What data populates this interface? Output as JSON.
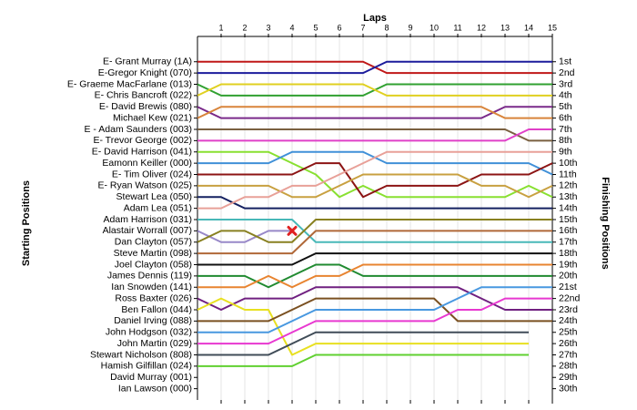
{
  "chart_data": {
    "type": "line",
    "xlabel": "Laps",
    "ylabel": "Starting Positions",
    "y2label": "Finishing Positions",
    "x": [
      0,
      1,
      2,
      3,
      4,
      5,
      6,
      7,
      8,
      9,
      10,
      11,
      12,
      13,
      14,
      15
    ],
    "xlim": [
      0,
      15
    ],
    "xticks": [
      1,
      2,
      3,
      4,
      5,
      6,
      7,
      8,
      9,
      10,
      11,
      12,
      13,
      14,
      15
    ],
    "ylim": [
      31,
      -1
    ],
    "y2lim": [
      31,
      -1
    ],
    "y2ticks": [
      {
        "value": 1,
        "label": "1st"
      },
      {
        "value": 2,
        "label": "2nd"
      },
      {
        "value": 3,
        "label": "3rd"
      },
      {
        "value": 4,
        "label": "4th"
      },
      {
        "value": 5,
        "label": "5th"
      },
      {
        "value": 6,
        "label": "6th"
      },
      {
        "value": 7,
        "label": "7th"
      },
      {
        "value": 8,
        "label": "8th"
      },
      {
        "value": 9,
        "label": "9th"
      },
      {
        "value": 10,
        "label": "10th"
      },
      {
        "value": 11,
        "label": "11th"
      },
      {
        "value": 12,
        "label": "12th"
      },
      {
        "value": 13,
        "label": "13th"
      },
      {
        "value": 14,
        "label": "14th"
      },
      {
        "value": 15,
        "label": "15th"
      },
      {
        "value": 16,
        "label": "16th"
      },
      {
        "value": 17,
        "label": "17th"
      },
      {
        "value": 18,
        "label": "18th"
      },
      {
        "value": 19,
        "label": "19th"
      },
      {
        "value": 20,
        "label": "20th"
      },
      {
        "value": 21,
        "label": "21st"
      },
      {
        "value": 22,
        "label": "22nd"
      },
      {
        "value": 23,
        "label": "23rd"
      },
      {
        "value": 24,
        "label": "24th"
      },
      {
        "value": 25,
        "label": "25th"
      },
      {
        "value": 26,
        "label": "26th"
      },
      {
        "value": 27,
        "label": "27th"
      },
      {
        "value": 28,
        "label": "28th"
      },
      {
        "value": 29,
        "label": "29th"
      },
      {
        "value": 30,
        "label": "30th"
      }
    ],
    "grid": true,
    "series": [
      {
        "name": "E- Grant Murray (1A)",
        "color": "#c01818",
        "values": [
          1,
          1,
          1,
          1,
          1,
          1,
          1,
          1,
          2,
          2,
          2,
          2,
          2,
          2,
          2,
          2
        ]
      },
      {
        "name": "E-Gregor Knight (070)",
        "color": "#1c1c9c",
        "values": [
          2,
          2,
          2,
          2,
          2,
          2,
          2,
          2,
          1,
          1,
          1,
          1,
          1,
          1,
          1,
          1
        ]
      },
      {
        "name": "E- Graeme MacFarlane (013)",
        "color": "#30a030",
        "values": [
          3,
          4,
          4,
          4,
          4,
          4,
          4,
          4,
          3,
          3,
          3,
          3,
          3,
          3,
          3,
          3
        ]
      },
      {
        "name": "E- Chris Bancroft (022)",
        "color": "#e0d020",
        "values": [
          4,
          3,
          3,
          3,
          3,
          3,
          3,
          3,
          4,
          4,
          4,
          4,
          4,
          4,
          4,
          4
        ]
      },
      {
        "name": "E- David Brewis (080)",
        "color": "#7a2a8a",
        "values": [
          5,
          6,
          6,
          6,
          6,
          6,
          6,
          6,
          6,
          6,
          6,
          6,
          6,
          5,
          5,
          5
        ]
      },
      {
        "name": "Michael Kew (021)",
        "color": "#d8843a",
        "values": [
          6,
          5,
          5,
          5,
          5,
          5,
          5,
          5,
          5,
          5,
          5,
          5,
          5,
          6,
          6,
          6
        ]
      },
      {
        "name": "E - Adam Saunders (003)",
        "color": "#7a6040",
        "values": [
          7,
          7,
          7,
          7,
          7,
          7,
          7,
          7,
          7,
          7,
          7,
          7,
          7,
          7,
          8,
          8
        ]
      },
      {
        "name": "E- Trevor George (002)",
        "color": "#e040c8",
        "values": [
          8,
          8,
          8,
          8,
          8,
          8,
          8,
          8,
          8,
          8,
          8,
          8,
          8,
          8,
          7,
          7
        ]
      },
      {
        "name": "E- David Harrison (041)",
        "color": "#88e030",
        "values": [
          9,
          9,
          9,
          9,
          10,
          11,
          13,
          12,
          13,
          13,
          13,
          13,
          13,
          13,
          12,
          13
        ]
      },
      {
        "name": "Eamonn Keiller (000)",
        "color": "#4090d8",
        "values": [
          10,
          10,
          10,
          10,
          9,
          9,
          9,
          9,
          10,
          10,
          10,
          10,
          10,
          10,
          10,
          11
        ]
      },
      {
        "name": "E- Tim Oliver (024)",
        "color": "#8c1414",
        "values": [
          11,
          11,
          11,
          11,
          11,
          10,
          10,
          13,
          12,
          12,
          12,
          12,
          11,
          11,
          11,
          10
        ]
      },
      {
        "name": "E- Ryan Watson (025)",
        "color": "#c8a040",
        "values": [
          12,
          12,
          12,
          12,
          13,
          13,
          12,
          11,
          11,
          11,
          11,
          11,
          12,
          12,
          13,
          12
        ]
      },
      {
        "name": "Stewart Lea (050)",
        "color": "#142060",
        "values": [
          13,
          13,
          14,
          14,
          14,
          14,
          14,
          14,
          14,
          14,
          14,
          14,
          14,
          14,
          14,
          14
        ]
      },
      {
        "name": "Adam Lea (051)",
        "color": "#e8a098",
        "values": [
          14,
          14,
          13,
          13,
          12,
          12,
          11,
          10,
          9,
          9,
          9,
          9,
          9,
          9,
          9,
          9
        ]
      },
      {
        "name": "Adam Harrison (031)",
        "color": "#48b8b8",
        "values": [
          15,
          15,
          15,
          15,
          15,
          17,
          17,
          17,
          17,
          17,
          17,
          17,
          17,
          17,
          17,
          17
        ]
      },
      {
        "name": "Alastair Worrall (007)",
        "color": "#9888c8",
        "values": [
          16,
          17,
          17,
          16,
          16,
          null,
          null,
          null,
          null,
          null,
          null,
          null,
          null,
          null,
          null,
          null
        ]
      },
      {
        "name": "Dan Clayton (057)",
        "color": "#888020",
        "values": [
          17,
          16,
          16,
          17,
          17,
          15,
          15,
          15,
          15,
          15,
          15,
          15,
          15,
          15,
          15,
          15
        ]
      },
      {
        "name": "Steve Martin (098)",
        "color": "#b06838",
        "values": [
          18,
          18,
          18,
          18,
          18,
          16,
          16,
          16,
          16,
          16,
          16,
          16,
          16,
          16,
          16,
          16
        ]
      },
      {
        "name": "Joel Clayton (058)",
        "color": "#101010",
        "values": [
          19,
          19,
          19,
          19,
          19,
          18,
          18,
          18,
          18,
          18,
          18,
          18,
          18,
          18,
          18,
          18
        ]
      },
      {
        "name": "James Dennis (119)",
        "color": "#208a30",
        "values": [
          20,
          20,
          20,
          21,
          20,
          19,
          19,
          20,
          20,
          20,
          20,
          20,
          20,
          20,
          20,
          20
        ]
      },
      {
        "name": "Ian Snowden (141)",
        "color": "#e88430",
        "values": [
          21,
          21,
          21,
          20,
          21,
          20,
          20,
          19,
          19,
          19,
          19,
          19,
          19,
          19,
          19,
          19
        ]
      },
      {
        "name": "Ross Baxter (026)",
        "color": "#702080",
        "values": [
          22,
          23,
          22,
          22,
          22,
          21,
          21,
          21,
          21,
          21,
          21,
          21,
          22,
          23,
          23,
          23
        ]
      },
      {
        "name": "Ben Fallon (044)",
        "color": "#e8e020",
        "values": [
          23,
          22,
          23,
          23,
          27,
          26,
          26,
          26,
          26,
          26,
          26,
          26,
          26,
          26,
          26,
          null
        ]
      },
      {
        "name": "Daniel Irving (088)",
        "color": "#7a5020",
        "values": [
          24,
          24,
          24,
          24,
          23,
          22,
          22,
          22,
          22,
          22,
          22,
          24,
          24,
          24,
          24,
          24
        ]
      },
      {
        "name": "John Hodgson (032)",
        "color": "#4898e0",
        "values": [
          25,
          25,
          25,
          25,
          24,
          23,
          23,
          23,
          23,
          23,
          23,
          22,
          21,
          21,
          21,
          21
        ]
      },
      {
        "name": "John Martin (029)",
        "color": "#e838d0",
        "values": [
          26,
          26,
          26,
          26,
          25,
          24,
          24,
          24,
          24,
          24,
          24,
          23,
          23,
          22,
          22,
          22
        ]
      },
      {
        "name": "Stewart Nicholson (808)",
        "color": "#404c58",
        "values": [
          27,
          27,
          27,
          27,
          26,
          25,
          25,
          25,
          25,
          25,
          25,
          25,
          25,
          25,
          25,
          null
        ]
      },
      {
        "name": "Hamish Gilfillan (024)",
        "color": "#60d030",
        "values": [
          28,
          28,
          28,
          28,
          28,
          27,
          27,
          27,
          27,
          27,
          27,
          27,
          27,
          27,
          27,
          null
        ]
      },
      {
        "name": "David Murray (001)",
        "color": "#808080",
        "values": [
          29,
          null,
          null,
          null,
          null,
          null,
          null,
          null,
          null,
          null,
          null,
          null,
          null,
          null,
          null,
          null
        ]
      },
      {
        "name": "Ian Lawson (000)",
        "color": "#808080",
        "values": [
          30,
          null,
          null,
          null,
          null,
          null,
          null,
          null,
          null,
          null,
          null,
          null,
          null,
          null,
          null,
          null
        ]
      }
    ],
    "markers": [
      {
        "x": 4,
        "y": 16,
        "color": "#e02020"
      }
    ]
  }
}
